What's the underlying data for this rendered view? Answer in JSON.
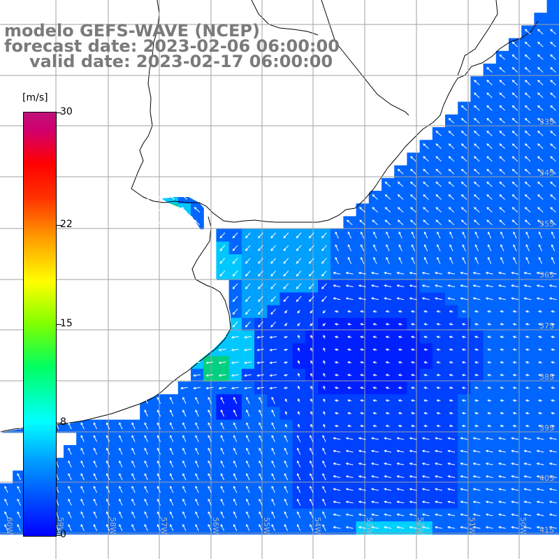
{
  "title": {
    "line1": "modelo GEFS-WAVE (NCEP)",
    "line2": "forecast date: 2023-02-06 06:00:00",
    "line3": "valid date: 2023-02-17 06:00:00"
  },
  "colorbar": {
    "unit": "[m/s]",
    "ticks": [
      "30",
      "22",
      "15",
      "8",
      "0"
    ],
    "tick_values": [
      30,
      22,
      15,
      8,
      0
    ],
    "min": 0,
    "max": 30,
    "colors": [
      "#0000ff",
      "#00a0ff",
      "#00ffff",
      "#00ff60",
      "#7fff00",
      "#ffff00",
      "#ffa000",
      "#ff3000",
      "#ff0000",
      "#d00070",
      "#c0107a"
    ]
  },
  "map": {
    "lat_labels": [
      "33S",
      "34S",
      "35S",
      "36S",
      "37S",
      "38S",
      "39S",
      "40S",
      "41S"
    ],
    "lon_labels": [
      "60W",
      "59W",
      "58W",
      "57W",
      "56W",
      "55W",
      "54W",
      "53W",
      "52W",
      "51W",
      "50W"
    ],
    "land_color": "#ffffff",
    "grid_color": "#a0a0a0",
    "arrow_color": "#ffffff",
    "description_colors": {
      "deep": "#0033ff",
      "mid": "#0080ff",
      "light": "#00c8ff",
      "green": "#00d080"
    }
  }
}
